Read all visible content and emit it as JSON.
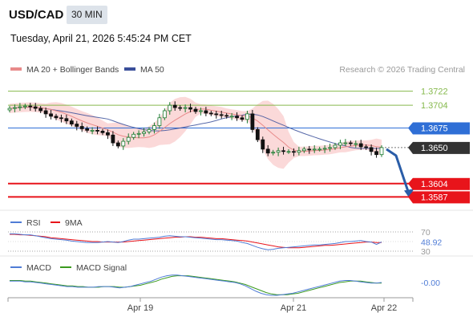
{
  "header": {
    "symbol": "USD/CAD",
    "timeframe": "30 MIN",
    "datetime": "Tuesday, April 21, 2026 5:45:24 PM CET"
  },
  "legend": {
    "ma20_label": "MA 20 + Bollinger Bands",
    "ma50_label": "MA 50",
    "copyright": "Research © 2026 Trading Central"
  },
  "colors": {
    "resistance_green": "#86b94d",
    "pivot_blue": "#2f6fd6",
    "support_red": "#e8141b",
    "current_dark": "#333333",
    "ma20": "#e88a8a",
    "ma50": "#3a4f9a",
    "bollinger_fill": "#fbd9d9",
    "candle_up": "#1a7a2e",
    "candle_down": "#111111",
    "arrow": "#2a5da8",
    "rsi": "#4f7cd6",
    "rsi_ma": "#e8141b",
    "macd": "#4f7cd6",
    "macd_signal": "#3a9a1e"
  },
  "chart_data": [
    {
      "type": "line",
      "subtype": "candlestick",
      "title": "USD/CAD 30 MIN",
      "ylim": [
        1.357,
        1.374
      ],
      "x_ticks": [
        "Apr 19",
        "Apr 21",
        "Apr 22"
      ],
      "levels": [
        {
          "label": "1.3722",
          "value": 1.3722,
          "kind": "resistance"
        },
        {
          "label": "1.3704",
          "value": 1.3704,
          "kind": "resistance"
        },
        {
          "label": "1.3675",
          "value": 1.3675,
          "kind": "pivot"
        },
        {
          "label": "1.3650",
          "value": 1.365,
          "kind": "current"
        },
        {
          "label": "1.3604",
          "value": 1.3604,
          "kind": "support"
        },
        {
          "label": "1.3587",
          "value": 1.3587,
          "kind": "support"
        }
      ],
      "close": [
        1.37,
        1.3701,
        1.3702,
        1.3703,
        1.3702,
        1.37,
        1.3697,
        1.3693,
        1.369,
        1.3688,
        1.3687,
        1.3684,
        1.368,
        1.3677,
        1.3674,
        1.3672,
        1.3672,
        1.3671,
        1.3669,
        1.3666,
        1.3656,
        1.3652,
        1.3658,
        1.3663,
        1.3667,
        1.3668,
        1.367,
        1.3673,
        1.3678,
        1.3688,
        1.3697,
        1.3704,
        1.3701,
        1.37,
        1.3701,
        1.3699,
        1.3696,
        1.3697,
        1.3694,
        1.3693,
        1.3692,
        1.3691,
        1.369,
        1.369,
        1.3688,
        1.3686,
        1.3693,
        1.3673,
        1.366,
        1.3648,
        1.3643,
        1.3644,
        1.3646,
        1.3645,
        1.3645,
        1.3644,
        1.3646,
        1.3648,
        1.3647,
        1.3648,
        1.3648,
        1.3649,
        1.365,
        1.3653,
        1.3656,
        1.3656,
        1.3655,
        1.3655,
        1.3651,
        1.365,
        1.3645,
        1.3641,
        1.365
      ],
      "series": [
        {
          "name": "MA 20 + Bollinger Bands"
        },
        {
          "name": "MA 50"
        }
      ],
      "forecast_arrow": {
        "from": 1.3648,
        "to": 1.3587
      }
    },
    {
      "type": "line",
      "title": "RSI",
      "ylim": [
        25,
        75
      ],
      "y_ticks": [
        70,
        30
      ],
      "current_label": "48.92",
      "series": [
        {
          "name": "RSI",
          "values": [
            66,
            66,
            65,
            64,
            64,
            62,
            60,
            58,
            56,
            55,
            54,
            53,
            51,
            50,
            49,
            48,
            48,
            48,
            49,
            50,
            49,
            48,
            50,
            53,
            55,
            55,
            56,
            57,
            58,
            59,
            61,
            62,
            61,
            60,
            60,
            59,
            58,
            57,
            56,
            55,
            54,
            54,
            53,
            52,
            51,
            48,
            46,
            42,
            38,
            35,
            33,
            34,
            36,
            37,
            38,
            39,
            40,
            41,
            42,
            43,
            43,
            44,
            45,
            46,
            48,
            50,
            50,
            51,
            52,
            50,
            49,
            44,
            48.92
          ]
        },
        {
          "name": "9MA",
          "values": [
            65,
            65,
            64,
            64,
            63,
            62,
            61,
            60,
            58,
            57,
            56,
            55,
            54,
            53,
            52,
            51,
            50,
            50,
            49,
            49,
            49,
            49,
            49,
            50,
            51,
            52,
            53,
            54,
            55,
            56,
            57,
            58,
            59,
            59,
            60,
            60,
            59,
            59,
            58,
            57,
            56,
            56,
            55,
            54,
            53,
            52,
            51,
            49,
            47,
            45,
            43,
            41,
            39,
            38,
            37,
            37,
            37,
            38,
            39,
            40,
            41,
            42,
            42,
            43,
            44,
            45,
            46,
            47,
            48,
            49,
            49,
            48,
            48
          ]
        }
      ]
    },
    {
      "type": "line",
      "title": "MACD",
      "current_label": "-0.00",
      "series": [
        {
          "name": "MACD",
          "values": [
            0.0002,
            0.0002,
            0.0002,
            0.0001,
            0.0001,
            0.0,
            -0.0001,
            -0.0002,
            -0.0003,
            -0.0004,
            -0.0005,
            -0.0006,
            -0.0006,
            -0.0007,
            -0.0007,
            -0.0007,
            -0.0007,
            -0.0006,
            -0.0006,
            -0.0006,
            -0.0007,
            -0.0008,
            -0.0007,
            -0.0006,
            -0.0004,
            -0.0002,
            0.0,
            0.0002,
            0.0005,
            0.0008,
            0.001,
            0.0011,
            0.0011,
            0.001,
            0.0009,
            0.0008,
            0.0007,
            0.0006,
            0.0005,
            0.0004,
            0.0003,
            0.0002,
            0.0001,
            0.0,
            -0.0002,
            -0.0005,
            -0.0009,
            -0.0013,
            -0.0016,
            -0.0018,
            -0.0019,
            -0.0019,
            -0.0018,
            -0.0017,
            -0.0016,
            -0.0014,
            -0.0012,
            -0.001,
            -0.0008,
            -0.0006,
            -0.0004,
            -0.0002,
            0.0,
            0.0002,
            0.0003,
            0.0003,
            0.0002,
            0.0001,
            0.0,
            -0.0001,
            -0.0001,
            0.0
          ]
        },
        {
          "name": "MACD Signal",
          "values": [
            0.0003,
            0.0003,
            0.0003,
            0.0002,
            0.0002,
            0.0001,
            0.0,
            -0.0001,
            -0.0002,
            -0.0003,
            -0.0004,
            -0.0005,
            -0.0005,
            -0.0006,
            -0.0006,
            -0.0007,
            -0.0007,
            -0.0007,
            -0.0006,
            -0.0006,
            -0.0006,
            -0.0007,
            -0.0007,
            -0.0006,
            -0.0005,
            -0.0004,
            -0.0002,
            0.0,
            0.0002,
            0.0005,
            0.0007,
            0.0009,
            0.001,
            0.001,
            0.001,
            0.0009,
            0.0008,
            0.0007,
            0.0006,
            0.0005,
            0.0004,
            0.0003,
            0.0002,
            0.0001,
            -0.0001,
            -0.0003,
            -0.0006,
            -0.0009,
            -0.0012,
            -0.0015,
            -0.0017,
            -0.0018,
            -0.0018,
            -0.0018,
            -0.0017,
            -0.0016,
            -0.0014,
            -0.0012,
            -0.001,
            -0.0008,
            -0.0006,
            -0.0004,
            -0.0002,
            0.0,
            0.0001,
            0.0002,
            0.0002,
            0.0002,
            0.0001,
            0.0,
            -0.0001,
            -0.0001
          ]
        }
      ]
    }
  ]
}
